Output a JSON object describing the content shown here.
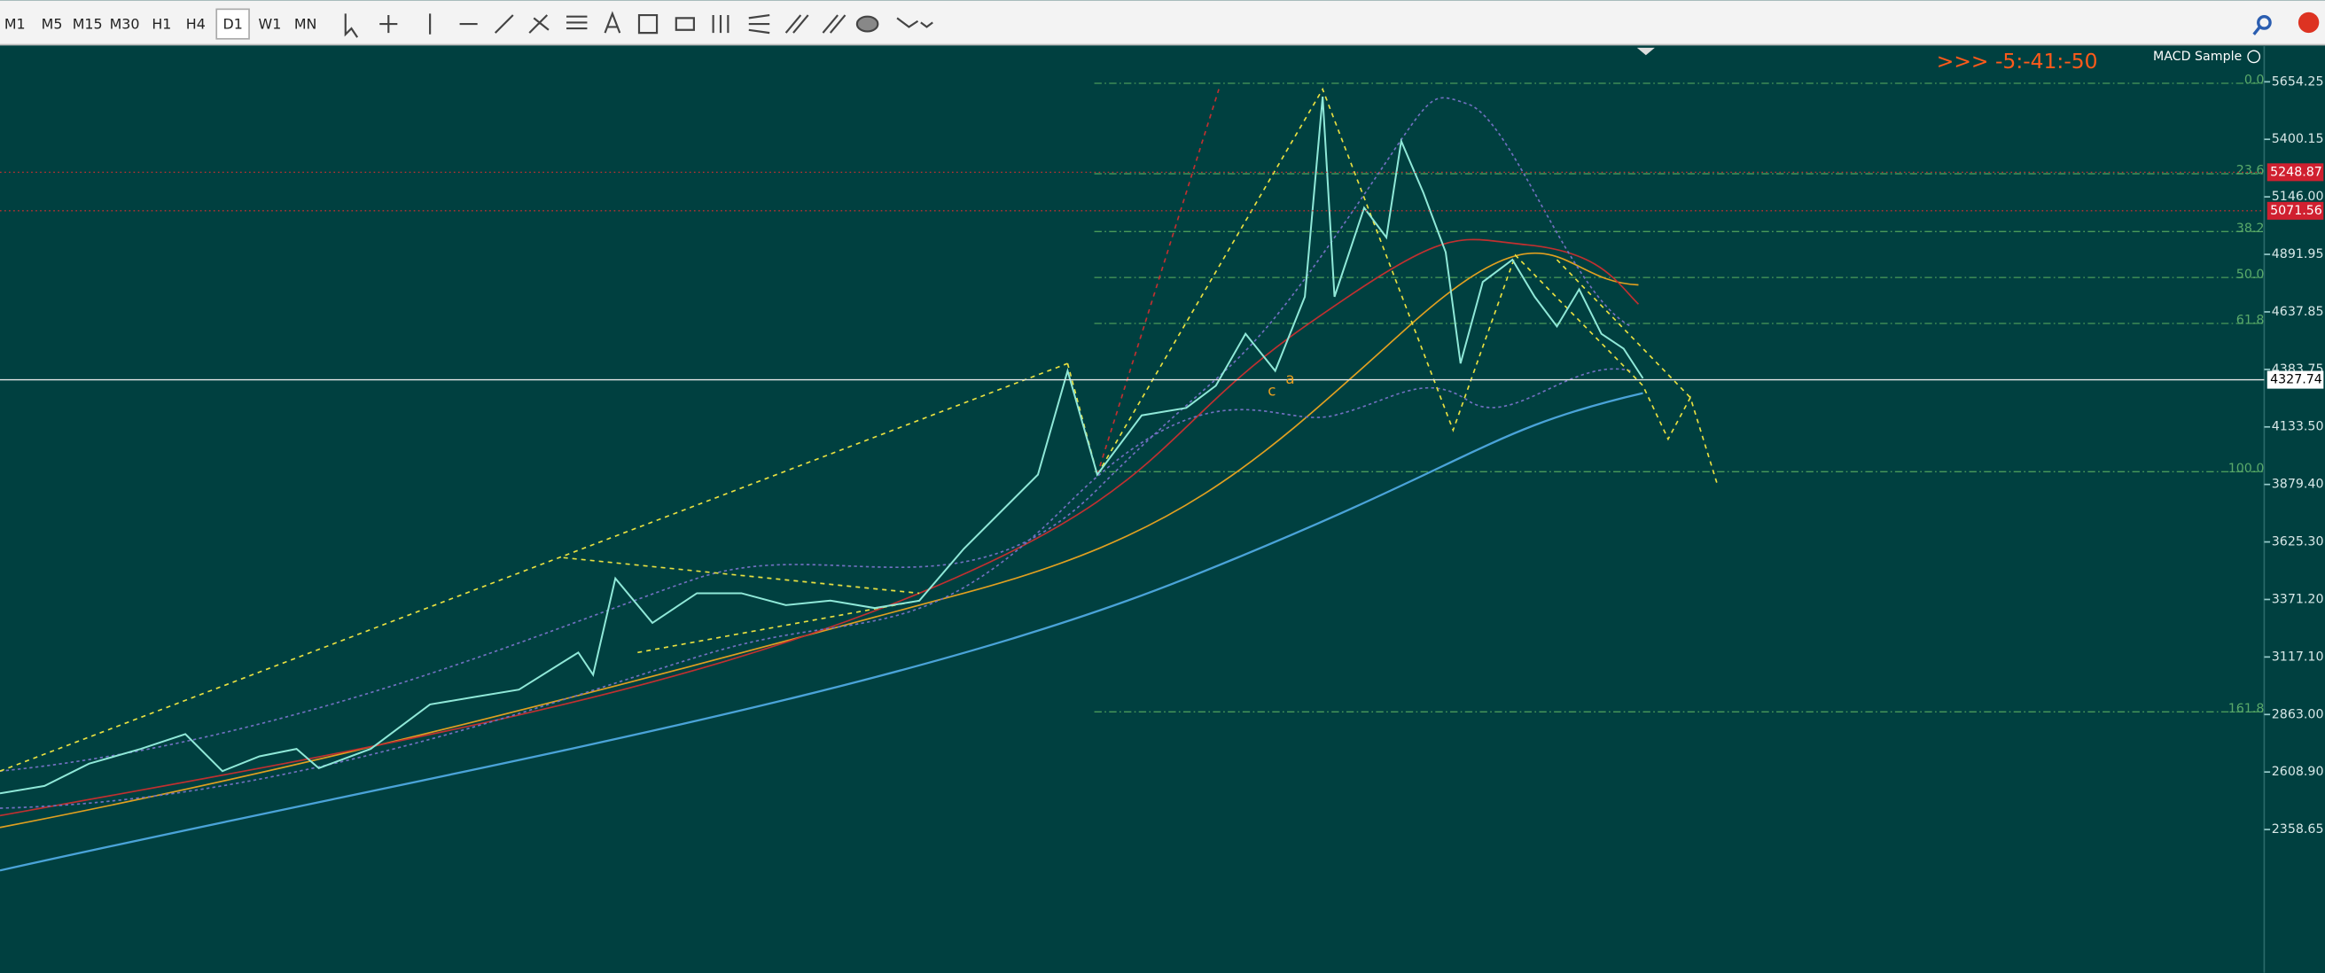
{
  "toolbar": {
    "timeframes": [
      "M1",
      "M5",
      "M15",
      "M30",
      "H1",
      "H4",
      "D1",
      "W1",
      "MN"
    ],
    "active": "D1"
  },
  "chart": {
    "indicator": "MACD Sample",
    "countdown": ">>> -5:-41:-50",
    "price_axis": [
      "5654.25",
      "5400.15",
      "5146.00",
      "4891.95",
      "4637.85",
      "4383.75",
      "4133.50",
      "3879.40",
      "3625.30",
      "3371.20",
      "3117.10",
      "2863.00",
      "2608.90",
      "2358.65"
    ],
    "price_tags": [
      "5248.87",
      "5071.56"
    ],
    "current_price": "4327.74",
    "fib_levels": [
      "0.0",
      "23.6",
      "38.2",
      "50.0",
      "61.8",
      "100.0",
      "161.8"
    ],
    "wave_labels": [
      "c",
      "a"
    ]
  }
}
